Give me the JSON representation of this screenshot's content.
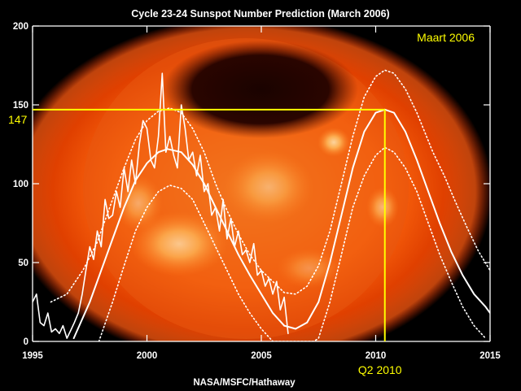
{
  "colors": {
    "background": "#000000",
    "axis": "#ffffff",
    "data": "#ffffff",
    "highlight": "#ffff00",
    "sun_core": "#ff7a10",
    "sun_edge": "#c02800"
  },
  "chart_data": {
    "type": "line",
    "title": "Cycle 23-24 Sunspot Number Prediction (March 2006)",
    "annotation": "Maart 2006",
    "credit": "NASA/MSFC/Hathaway",
    "xlabel": "",
    "ylabel": "",
    "xlim": [
      1995,
      2015
    ],
    "ylim": [
      0,
      200
    ],
    "x_ticks": [
      1995,
      2000,
      2005,
      2010,
      2015
    ],
    "y_ticks": [
      0,
      50,
      100,
      150,
      200
    ],
    "grid": false,
    "background_image": "solar-x-ray-sun",
    "peak_marker": {
      "x": 2010.4,
      "y": 147,
      "y_label": "147",
      "x_label": "Q2 2010"
    },
    "series": [
      {
        "style": "jagged-line",
        "x": [
          1995.0,
          1995.17,
          1995.33,
          1995.5,
          1995.67,
          1995.83,
          1996.0,
          1996.17,
          1996.33,
          1996.5,
          1996.67,
          1996.83,
          1997.0,
          1997.17,
          1997.33,
          1997.5,
          1997.67,
          1997.83,
          1998.0,
          1998.17,
          1998.33,
          1998.5,
          1998.67,
          1998.83,
          1999.0,
          1999.17,
          1999.33,
          1999.5,
          1999.67,
          1999.83,
          2000.0,
          2000.17,
          2000.33,
          2000.5,
          2000.67,
          2000.83,
          2001.0,
          2001.17,
          2001.33,
          2001.5,
          2001.67,
          2001.83,
          2002.0,
          2002.17,
          2002.33,
          2002.5,
          2002.67,
          2002.83,
          2003.0,
          2003.17,
          2003.33,
          2003.5,
          2003.67,
          2003.83,
          2004.0,
          2004.17,
          2004.33,
          2004.5,
          2004.67,
          2004.83,
          2005.0,
          2005.17,
          2005.33,
          2005.5,
          2005.67,
          2005.83,
          2006.0,
          2006.17
        ],
        "y": [
          25,
          30,
          12,
          10,
          18,
          6,
          8,
          5,
          10,
          2,
          7,
          12,
          18,
          30,
          45,
          60,
          52,
          70,
          60,
          90,
          78,
          80,
          95,
          85,
          110,
          95,
          115,
          100,
          125,
          140,
          135,
          115,
          110,
          130,
          170,
          120,
          130,
          118,
          110,
          150,
          135,
          115,
          120,
          105,
          118,
          95,
          100,
          80,
          85,
          70,
          90,
          65,
          78,
          60,
          70,
          55,
          58,
          50,
          62,
          42,
          45,
          35,
          40,
          30,
          38,
          20,
          28,
          5
        ]
      },
      {
        "style": "smooth-line",
        "x": [
          1996.8,
          1997.5,
          1998.0,
          1998.5,
          1999.0,
          1999.5,
          2000.0,
          2000.5,
          2000.9,
          2001.5,
          2002.0,
          2002.5,
          2003.0,
          2003.5,
          2004.0,
          2004.5,
          2005.0,
          2005.5,
          2006.0
        ],
        "y": [
          2,
          25,
          45,
          65,
          85,
          102,
          113,
          120,
          122,
          120,
          112,
          100,
          85,
          70,
          55,
          42,
          30,
          18,
          10
        ]
      },
      {
        "style": "dotted-line",
        "x": [
          1995.8,
          1996.5,
          1997.2,
          1997.8,
          1998.5,
          1999.0,
          1999.5,
          2000.0,
          2000.5,
          2001.0,
          2001.5,
          2002.0,
          2002.5,
          2003.0,
          2003.5,
          2004.0,
          2004.5,
          2005.0,
          2005.5,
          2006.0,
          2006.5,
          2007.0,
          2007.5,
          2008.0,
          2008.5,
          2009.0,
          2009.5,
          2010.0,
          2010.4,
          2010.8,
          2011.3,
          2011.8,
          2012.5,
          2013.0,
          2013.5,
          2014.0,
          2014.5,
          2015.0
        ],
        "y": [
          25,
          30,
          45,
          62,
          90,
          110,
          128,
          140,
          146,
          148,
          145,
          135,
          120,
          100,
          83,
          68,
          55,
          45,
          38,
          31,
          30,
          35,
          48,
          70,
          100,
          130,
          155,
          168,
          172,
          170,
          160,
          145,
          120,
          105,
          88,
          72,
          57,
          45
        ]
      },
      {
        "style": "dotted-line",
        "x": [
          1997.9,
          1998.5,
          1999.0,
          1999.5,
          2000.0,
          2000.5,
          2001.0,
          2001.5,
          2002.0,
          2002.5,
          2003.0,
          2003.5,
          2004.0,
          2004.5,
          2005.0,
          2005.5,
          2006.0,
          2006.5,
          2007.0,
          2007.3,
          2007.5,
          2008.0,
          2008.5,
          2009.0,
          2009.5,
          2010.0,
          2010.4,
          2010.8,
          2011.3,
          2011.8,
          2012.3,
          2012.8,
          2013.3,
          2013.8,
          2014.3,
          2014.8
        ],
        "y": [
          0,
          25,
          48,
          70,
          85,
          95,
          99,
          97,
          90,
          75,
          60,
          45,
          30,
          18,
          8,
          0,
          0,
          0,
          0,
          0,
          2,
          25,
          55,
          85,
          105,
          118,
          123,
          120,
          110,
          95,
          75,
          55,
          38,
          22,
          10,
          2
        ]
      },
      {
        "style": "smooth-line",
        "x": [
          2006.0,
          2006.5,
          2007.0,
          2007.5,
          2008.0,
          2008.5,
          2009.0,
          2009.5,
          2010.0,
          2010.4,
          2010.8,
          2011.3,
          2011.8,
          2012.3,
          2012.8,
          2013.3,
          2013.8,
          2014.3,
          2014.8,
          2015.0
        ],
        "y": [
          10,
          8,
          12,
          25,
          50,
          80,
          110,
          133,
          145,
          147,
          145,
          133,
          115,
          95,
          75,
          57,
          42,
          30,
          22,
          18
        ]
      }
    ]
  }
}
